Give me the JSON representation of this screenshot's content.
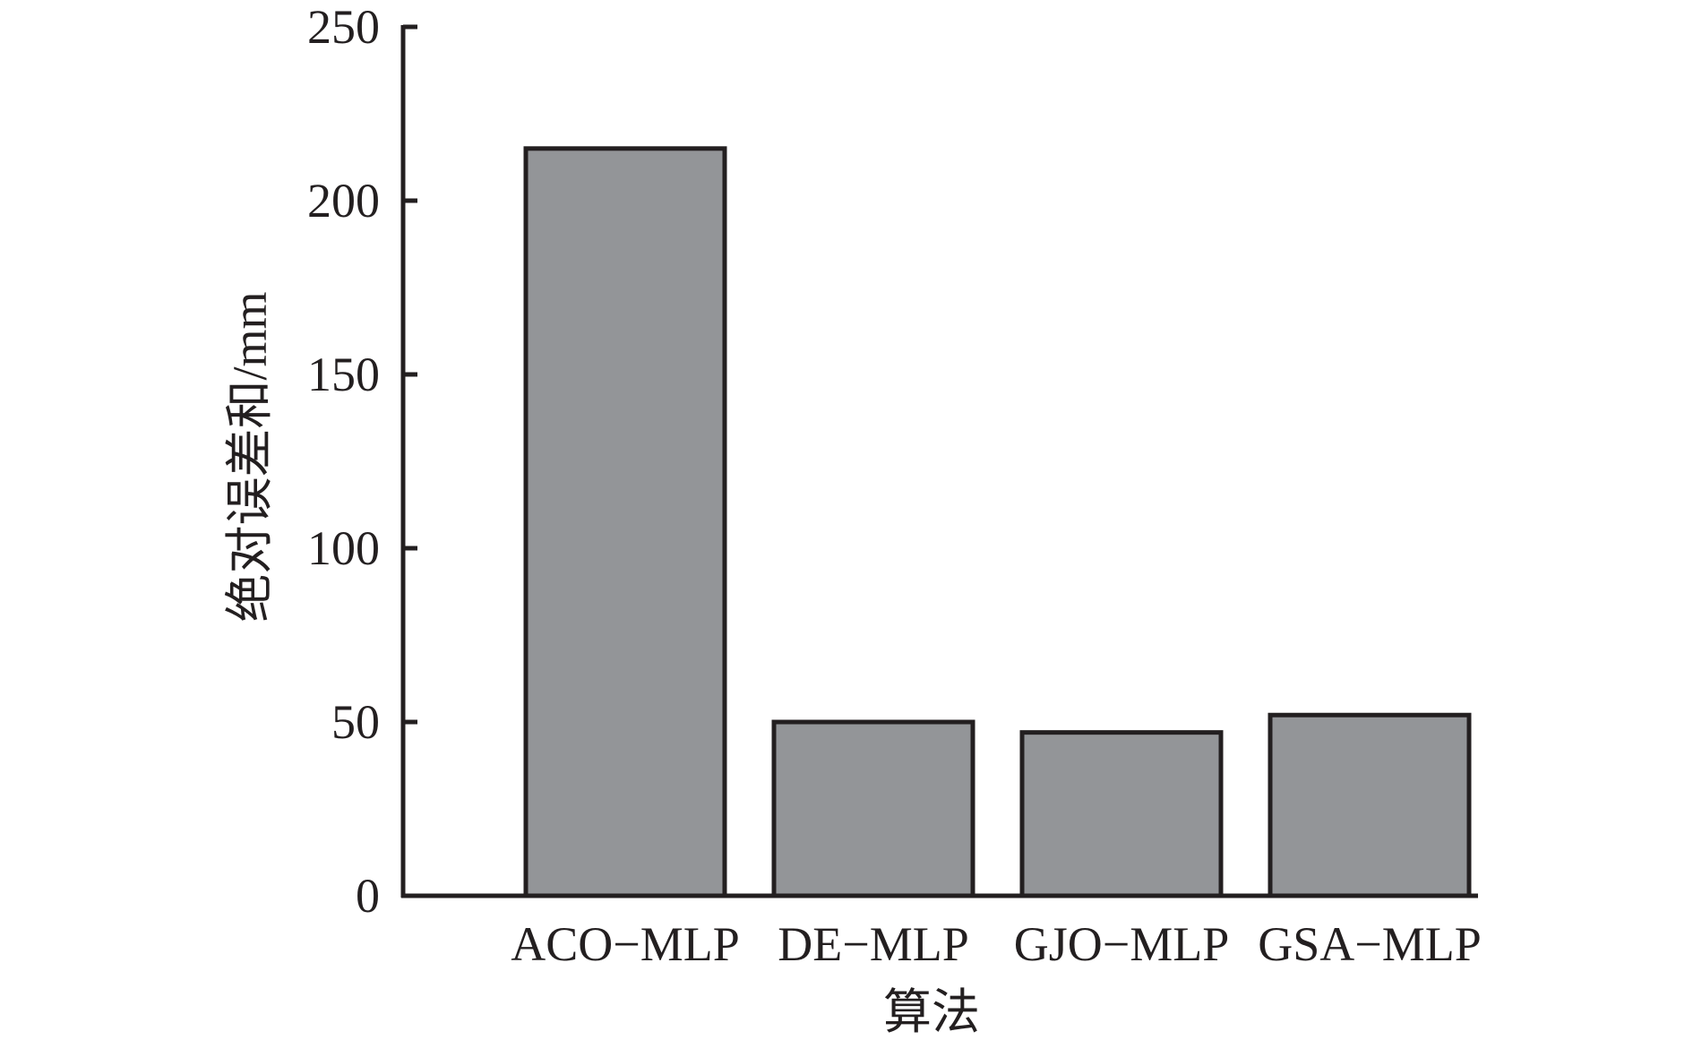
{
  "chart_data": {
    "type": "bar",
    "categories": [
      "ACO−MLP",
      "DE−MLP",
      "GJO−MLP",
      "GSA−MLP"
    ],
    "values": [
      215,
      50,
      47,
      52
    ],
    "title": "",
    "xlabel": "算法",
    "ylabel": "绝对误差和/mm",
    "ylim": [
      0,
      250
    ],
    "yticks": [
      0,
      50,
      100,
      150,
      200,
      250
    ],
    "grid": false,
    "legend": "none",
    "colors": {
      "bar_fill": "#939598",
      "bar_edge": "#231f20",
      "axis": "#231f20"
    }
  }
}
